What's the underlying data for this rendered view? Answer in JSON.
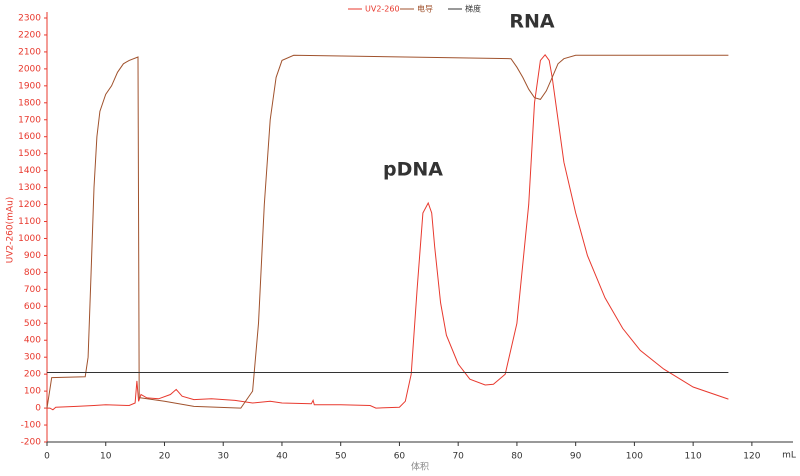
{
  "chart_data": {
    "type": "line",
    "y_label": "UV2-260(mAu)",
    "x_label": "体积",
    "x_unit": "mL",
    "annotations": [
      "pDNA",
      "RNA"
    ],
    "xlim": [
      0,
      127
    ],
    "ylim": [
      -200,
      2300
    ],
    "xticks": [
      0,
      10,
      20,
      30,
      40,
      50,
      60,
      70,
      80,
      90,
      100,
      110,
      120
    ],
    "yticks": [
      -200,
      -100,
      0,
      100,
      200,
      300,
      400,
      500,
      600,
      700,
      800,
      900,
      1000,
      1100,
      1200,
      1300,
      1400,
      1500,
      1600,
      1700,
      1800,
      1900,
      2000,
      2100,
      2200,
      2300
    ],
    "grid": false,
    "series": [
      {
        "name": "UV2-260",
        "color": "#e8392e",
        "x": [
          0,
          0.5,
          1,
          1.5,
          5,
          8,
          10,
          14,
          15,
          15.3,
          15.6,
          16,
          17,
          19,
          21,
          22,
          23,
          25,
          28,
          32,
          35,
          38,
          40,
          45,
          45.3,
          45.5,
          50,
          55,
          56,
          60,
          61,
          62,
          63,
          64,
          64.9,
          65.5,
          66,
          67,
          68,
          70,
          72,
          74.6,
          76,
          78,
          80,
          82,
          83,
          84,
          84.8,
          85.5,
          86,
          88,
          90,
          92,
          95,
          98,
          101,
          105,
          110,
          116
        ],
        "values": [
          0,
          0,
          -10,
          5,
          10,
          15,
          20,
          15,
          30,
          160,
          40,
          80,
          60,
          55,
          80,
          110,
          70,
          50,
          55,
          45,
          30,
          40,
          30,
          25,
          45,
          20,
          20,
          15,
          0,
          5,
          40,
          200,
          700,
          1150,
          1209,
          1150,
          950,
          620,
          430,
          260,
          170,
          136,
          140,
          200,
          500,
          1200,
          1800,
          2050,
          2083,
          2050,
          1950,
          1450,
          1150,
          900,
          650,
          470,
          340,
          230,
          124,
          53
        ]
      },
      {
        "name": "电导",
        "color": "#a0522d",
        "x": [
          0,
          0.8,
          6.5,
          7,
          7.5,
          8,
          8.5,
          9,
          10,
          11,
          12,
          13,
          14,
          15.5,
          15.7,
          16,
          20,
          25,
          33,
          35,
          36,
          37,
          38,
          39,
          40,
          42,
          79,
          80,
          81,
          82,
          83,
          84,
          85,
          86,
          87,
          88,
          90,
          116
        ],
        "values": [
          0,
          180,
          185,
          300,
          800,
          1300,
          1600,
          1750,
          1850,
          1900,
          1980,
          2030,
          2050,
          2070,
          60,
          60,
          40,
          10,
          0,
          100,
          500,
          1200,
          1700,
          1950,
          2050,
          2080,
          2060,
          2010,
          1950,
          1880,
          1830,
          1820,
          1870,
          1950,
          2030,
          2060,
          2080,
          2080
        ]
      },
      {
        "name": "梯度",
        "color": "#333333",
        "x": [
          0,
          116
        ],
        "values": [
          210,
          210
        ]
      }
    ]
  }
}
